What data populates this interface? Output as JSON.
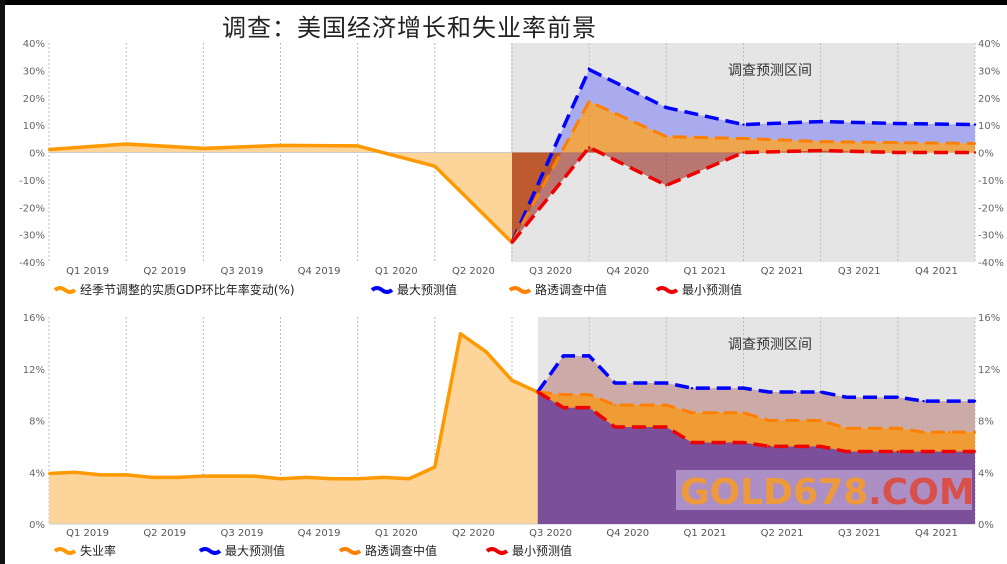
{
  "title": "调查：美国经济增长和失业率前景",
  "colors": {
    "actual": "#ff9900",
    "actual_fill": "#fdd49a",
    "max": "#0000ff",
    "median": "#ff8000",
    "min": "#ee0000",
    "forecast_band_bg": "#e5e5e5",
    "bottom_min_fill": "#7b4f9a",
    "bottom_median_fill": "#f09c35",
    "bottom_max_fill": "#cbaaa8"
  },
  "watermark": {
    "text_a": "GOLD678",
    "text_b": ".COM"
  },
  "chart_data": [
    {
      "type": "area",
      "band_label": "调查预测区间",
      "x_labels": [
        "Q1 2019",
        "Q2 2019",
        "Q3 2019",
        "Q4 2019",
        "Q1 2020",
        "Q2 2020",
        "Q3 2020",
        "Q4 2020",
        "Q1 2021",
        "Q2 2021",
        "Q3 2021",
        "Q4 2021"
      ],
      "y_ticks": [
        "40%",
        "30%",
        "20%",
        "10%",
        "0%",
        "-10%",
        "-20%",
        "-30%",
        "-40%"
      ],
      "ylim": [
        -40,
        40
      ],
      "grid": "vertical dashed",
      "legend_position": "bottom",
      "series": [
        {
          "name": "经季节调整的实质GDP环比年率变动(%)",
          "role": "actual",
          "start_index": 0,
          "values": [
            1.1,
            3.1,
            1.5,
            2.6,
            2.4,
            -5.0,
            -32.9
          ]
        },
        {
          "name": "最大预测值",
          "role": "max",
          "start_index": 6,
          "values": [
            -32.9,
            30.3,
            16.4,
            10.2,
            11.3,
            10.6,
            10.2
          ]
        },
        {
          "name": "路透调查中值",
          "role": "median",
          "start_index": 6,
          "values": [
            -32.9,
            18.6,
            5.8,
            5.1,
            4.0,
            3.6,
            3.3
          ]
        },
        {
          "name": "最小预测值",
          "role": "min",
          "start_index": 6,
          "values": [
            -32.9,
            1.9,
            -12.0,
            0.0,
            0.7,
            0.0,
            0.0
          ]
        }
      ]
    },
    {
      "type": "area",
      "band_label": "调查预测区间",
      "x_labels": [
        "Q1 2019",
        "Q2 2019",
        "Q3 2019",
        "Q4 2019",
        "Q1 2020",
        "Q2 2020",
        "Q3 2020",
        "Q4 2020",
        "Q1 2021",
        "Q2 2021",
        "Q3 2021",
        "Q4 2021"
      ],
      "y_ticks": [
        "16%",
        "12%",
        "8%",
        "4%",
        "0%"
      ],
      "ylim": [
        0,
        16
      ],
      "grid": "vertical dashed",
      "legend_position": "bottom",
      "series": [
        {
          "name": "失业率",
          "role": "actual",
          "start_month": "2018-12",
          "values": [
            3.9,
            4.0,
            3.8,
            3.8,
            3.6,
            3.6,
            3.7,
            3.7,
            3.7,
            3.5,
            3.6,
            3.5,
            3.5,
            3.6,
            3.5,
            4.4,
            14.7,
            13.3,
            11.1,
            10.2
          ]
        },
        {
          "name": "最大预测值",
          "role": "max",
          "start_month": "2020-07",
          "values": [
            10.2,
            13.0,
            13.0,
            10.9,
            10.9,
            10.9,
            10.5,
            10.5,
            10.5,
            10.2,
            10.2,
            10.2,
            9.8,
            9.8,
            9.8,
            9.5,
            9.5,
            9.5
          ]
        },
        {
          "name": "路透调查中值",
          "role": "median",
          "start_month": "2020-07",
          "values": [
            10.2,
            10.0,
            10.0,
            9.2,
            9.2,
            9.2,
            8.6,
            8.6,
            8.6,
            8.0,
            8.0,
            8.0,
            7.4,
            7.4,
            7.4,
            7.1,
            7.1,
            7.1
          ]
        },
        {
          "name": "最小预测值",
          "role": "min",
          "start_month": "2020-07",
          "values": [
            10.2,
            9.0,
            9.0,
            7.5,
            7.5,
            7.5,
            6.3,
            6.3,
            6.3,
            6.0,
            6.0,
            6.0,
            5.6,
            5.6,
            5.6,
            5.6,
            5.6,
            5.6
          ]
        }
      ]
    }
  ]
}
